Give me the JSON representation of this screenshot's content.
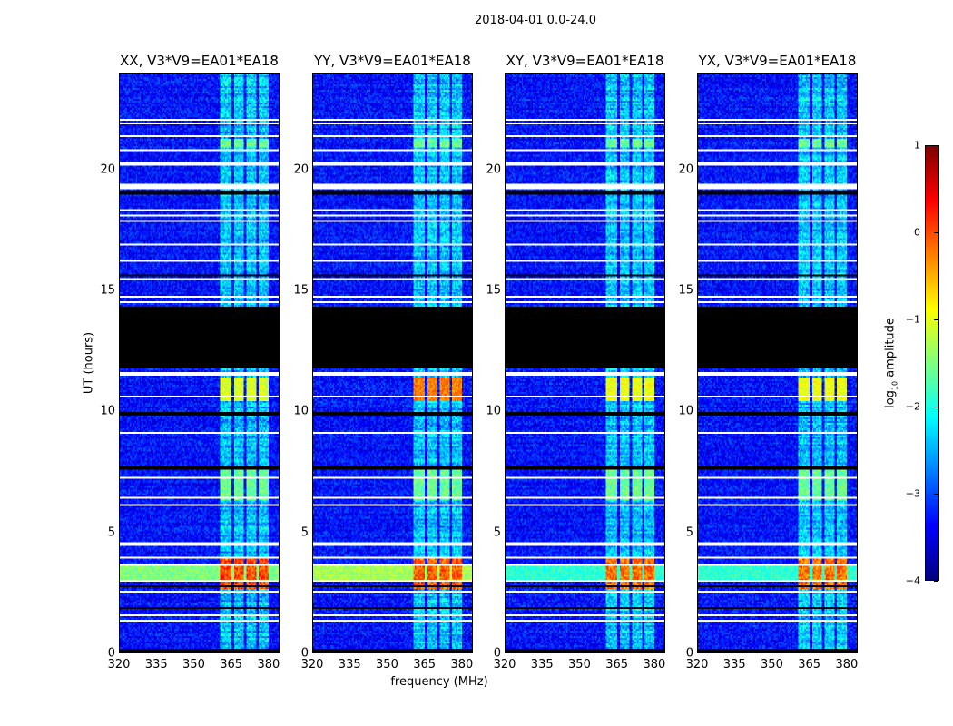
{
  "suptitle": "2018-04-01 0.0-24.0",
  "chart_data": {
    "type": "heatmap",
    "title": "2018-04-01 0.0-24.0",
    "xlabel": "frequency (MHz)",
    "ylabel": "UT (hours)",
    "xlim": [
      320,
      384.4
    ],
    "ylim": [
      0,
      24
    ],
    "xticks": [
      "320",
      "335",
      "350",
      "365",
      "380"
    ],
    "xtick_values": [
      320,
      335,
      350,
      365,
      380
    ],
    "yticks": [
      "0",
      "5",
      "10",
      "15",
      "20"
    ],
    "ytick_values": [
      0,
      5,
      10,
      15,
      20
    ],
    "panels": [
      {
        "title": "XX, V3*V9=EA01*EA18",
        "band_3h": -1.5,
        "rfi_3h": 0.2,
        "rfi_11h": -1.0
      },
      {
        "title": "YY, V3*V9=EA01*EA18",
        "band_3h": -1.3,
        "rfi_3h": 0.1,
        "rfi_11h": -0.2
      },
      {
        "title": "XY, V3*V9=EA01*EA18",
        "band_3h": -1.9,
        "rfi_3h": 0.0,
        "rfi_11h": -0.9
      },
      {
        "title": "YX, V3*V9=EA01*EA18",
        "band_3h": -1.9,
        "rfi_3h": 0.0,
        "rfi_11h": -0.9
      }
    ],
    "background_log10_amplitude": -3.3,
    "rfi_channels_mhz": [
      [
        361,
        365.5
      ],
      [
        366.5,
        370.5
      ],
      [
        371.5,
        375.5
      ],
      [
        376.5,
        380.5
      ]
    ],
    "flagged_white_hours": [
      [
        22.05,
        22.15
      ],
      [
        21.9,
        21.97
      ],
      [
        21.35,
        21.45
      ],
      [
        20.75,
        20.82
      ],
      [
        20.2,
        20.35
      ],
      [
        19.2,
        19.4
      ],
      [
        18.8,
        18.85
      ],
      [
        18.3,
        18.36
      ],
      [
        18.1,
        18.16
      ],
      [
        17.85,
        17.9
      ],
      [
        16.9,
        16.96
      ],
      [
        16.2,
        16.26
      ],
      [
        15.45,
        15.5
      ],
      [
        14.7,
        14.75
      ],
      [
        14.5,
        14.56
      ],
      [
        11.5,
        11.6
      ],
      [
        11.3,
        11.36
      ],
      [
        10.6,
        10.65
      ],
      [
        9.1,
        9.15
      ],
      [
        8.6,
        8.65
      ],
      [
        7.2,
        7.26
      ],
      [
        6.4,
        6.45
      ],
      [
        6.1,
        6.16
      ],
      [
        4.4,
        4.55
      ],
      [
        3.9,
        3.96
      ],
      [
        3.62,
        3.7
      ],
      [
        2.93,
        2.98
      ],
      [
        2.45,
        2.52
      ],
      [
        2.15,
        2.2
      ],
      [
        1.5,
        1.56
      ],
      [
        1.3,
        1.35
      ],
      [
        0.5,
        0.55
      ]
    ],
    "flagged_black_hours": [
      [
        11.8,
        14.3
      ],
      [
        0,
        0.15
      ],
      [
        19.0,
        19.1
      ],
      [
        17.0,
        17.05
      ],
      [
        15.6,
        15.65
      ],
      [
        9.8,
        10.0
      ],
      [
        7.6,
        7.7
      ],
      [
        5.9,
        5.95
      ],
      [
        2.7,
        2.75
      ],
      [
        1.8,
        1.85
      ]
    ],
    "colorbar": {
      "label": "log10 amplitude",
      "label_base": "log",
      "label_sub": "10",
      "label_rest": " amplitude",
      "range": [
        -4,
        1
      ],
      "ticks": [
        "1",
        "0",
        "−1",
        "−2",
        "−3",
        "−4"
      ],
      "tick_values": [
        1,
        0,
        -1,
        -2,
        -3,
        -4
      ],
      "colormap": "jet"
    }
  }
}
